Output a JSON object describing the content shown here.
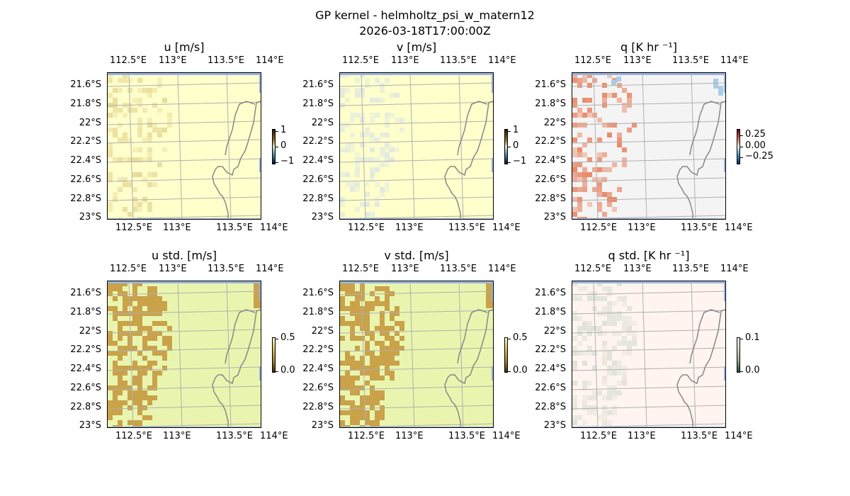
{
  "figure": {
    "title_line1": "GP kernel - helmholtz_psi_w_matern12",
    "title_line2": "2026-03-18T17:00:00Z"
  },
  "x_tick_labels": [
    "112.5°E",
    "113°E",
    "113.5°E",
    "114°E"
  ],
  "y_tick_labels": [
    "21.6°S",
    "21.8°S",
    "22°S",
    "22.2°S",
    "22.4°S",
    "22.6°S",
    "22.8°S",
    "23°S"
  ],
  "panels": [
    {
      "title": "u [m/s]",
      "colorbar_ticks": [
        "1",
        "0",
        "−1"
      ],
      "background": "#ffffcc",
      "patch": "#e8dc9a"
    },
    {
      "title": "v [m/s]",
      "colorbar_ticks": [
        "1",
        "0",
        "−1"
      ],
      "background": "#ffffcc",
      "patch": "#dfe8e0"
    },
    {
      "title": "q [K hr ⁻¹]",
      "colorbar_ticks": [
        "0.25",
        "0.00",
        "−0.25"
      ],
      "background": "#f4f4f4",
      "patch": "#e8896a"
    },
    {
      "title": "u std. [m/s]",
      "colorbar_ticks": [
        "0.5",
        "0.0"
      ],
      "background": "#e9f5ae",
      "patch": "#c9a24a"
    },
    {
      "title": "v std. [m/s]",
      "colorbar_ticks": [
        "0.5",
        "0.0"
      ],
      "background": "#e9f5ae",
      "patch": "#c9a24a"
    },
    {
      "title": "q std. [K hr ⁻¹]",
      "colorbar_ticks": [
        "0.1",
        "0.0"
      ],
      "background": "#fff4f0",
      "patch": "#dfe2d6"
    }
  ],
  "chart_data": {
    "type": "heatmap",
    "panel_count": 6,
    "lon_range": [
      112.5,
      114.2
    ],
    "lat_range": [
      -23.0,
      -21.5
    ],
    "colorbar_ranges": {
      "u": [
        -1,
        1
      ],
      "v": [
        -1,
        1
      ],
      "q": [
        -0.25,
        0.25
      ],
      "u_std": [
        0.0,
        0.5
      ],
      "v_std": [
        0.0,
        0.5
      ],
      "q_std": [
        0.0,
        0.1
      ]
    },
    "colors": {
      "coastline": "#888888",
      "ocean_edge": "#9ab4de",
      "grid": "#b0b0b0"
    }
  }
}
